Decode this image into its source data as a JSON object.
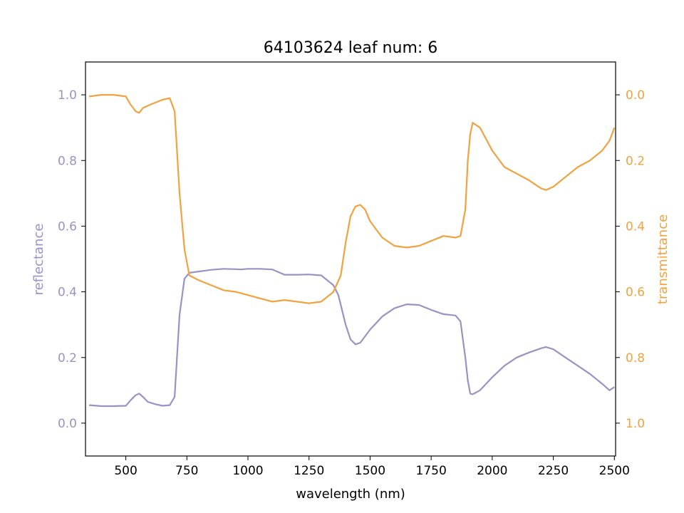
{
  "chart_data": {
    "type": "line",
    "title": "64103624 leaf num: 6",
    "xlabel": "wavelength (nm)",
    "ylabel": "reflectance",
    "y2label": "transmittance",
    "xlim": [
      335,
      2505
    ],
    "ylim": [
      -0.1,
      1.1
    ],
    "y2lim": [
      1.1,
      -0.1
    ],
    "y2_inverted": true,
    "xticks": [
      500,
      750,
      1000,
      1250,
      1500,
      1750,
      2000,
      2250,
      2500
    ],
    "yticks": [
      0.0,
      0.2,
      0.4,
      0.6,
      0.8,
      1.0
    ],
    "y2ticks": [
      0.0,
      0.2,
      0.4,
      0.6,
      0.8,
      1.0
    ],
    "grid": false,
    "colors": {
      "reflectance": "#9893c4",
      "transmittance": "#f0a23f",
      "axis": "#000000"
    },
    "series": [
      {
        "axis": "left",
        "x": [
          350,
          400,
          450,
          500,
          520,
          540,
          555,
          570,
          590,
          620,
          650,
          680,
          700,
          720,
          740,
          760,
          800,
          850,
          900,
          950,
          970,
          1000,
          1050,
          1100,
          1150,
          1200,
          1250,
          1300,
          1350,
          1370,
          1400,
          1420,
          1440,
          1460,
          1500,
          1550,
          1600,
          1650,
          1700,
          1750,
          1800,
          1850,
          1870,
          1890,
          1900,
          1910,
          1920,
          1950,
          2000,
          2050,
          2100,
          2150,
          2200,
          2220,
          2250,
          2300,
          2350,
          2400,
          2450,
          2480,
          2500
        ],
        "values": [
          0.055,
          0.052,
          0.052,
          0.053,
          0.07,
          0.085,
          0.09,
          0.08,
          0.065,
          0.058,
          0.053,
          0.055,
          0.08,
          0.33,
          0.44,
          0.458,
          0.462,
          0.467,
          0.47,
          0.469,
          0.468,
          0.47,
          0.47,
          0.468,
          0.452,
          0.452,
          0.453,
          0.45,
          0.42,
          0.39,
          0.3,
          0.255,
          0.24,
          0.245,
          0.285,
          0.325,
          0.35,
          0.362,
          0.36,
          0.345,
          0.332,
          0.328,
          0.31,
          0.2,
          0.13,
          0.09,
          0.088,
          0.1,
          0.14,
          0.175,
          0.2,
          0.215,
          0.228,
          0.232,
          0.225,
          0.2,
          0.175,
          0.15,
          0.12,
          0.1,
          0.11
        ]
      },
      {
        "axis": "right",
        "x": [
          350,
          400,
          450,
          500,
          520,
          540,
          555,
          570,
          600,
          650,
          680,
          700,
          720,
          740,
          760,
          800,
          850,
          900,
          950,
          1000,
          1050,
          1100,
          1150,
          1200,
          1250,
          1300,
          1350,
          1380,
          1400,
          1420,
          1440,
          1460,
          1480,
          1500,
          1550,
          1600,
          1650,
          1700,
          1750,
          1800,
          1850,
          1870,
          1890,
          1900,
          1910,
          1920,
          1950,
          2000,
          2050,
          2100,
          2150,
          2200,
          2220,
          2250,
          2300,
          2350,
          2400,
          2450,
          2480,
          2500
        ],
        "values": [
          0.005,
          0.0,
          0.0,
          0.005,
          0.03,
          0.05,
          0.055,
          0.04,
          0.03,
          0.015,
          0.01,
          0.05,
          0.3,
          0.47,
          0.55,
          0.565,
          0.58,
          0.595,
          0.6,
          0.61,
          0.62,
          0.63,
          0.625,
          0.63,
          0.635,
          0.63,
          0.6,
          0.55,
          0.45,
          0.37,
          0.34,
          0.335,
          0.35,
          0.385,
          0.435,
          0.46,
          0.465,
          0.46,
          0.445,
          0.43,
          0.435,
          0.43,
          0.35,
          0.2,
          0.12,
          0.085,
          0.1,
          0.17,
          0.22,
          0.24,
          0.26,
          0.285,
          0.29,
          0.28,
          0.25,
          0.22,
          0.2,
          0.17,
          0.14,
          0.1
        ]
      }
    ]
  }
}
